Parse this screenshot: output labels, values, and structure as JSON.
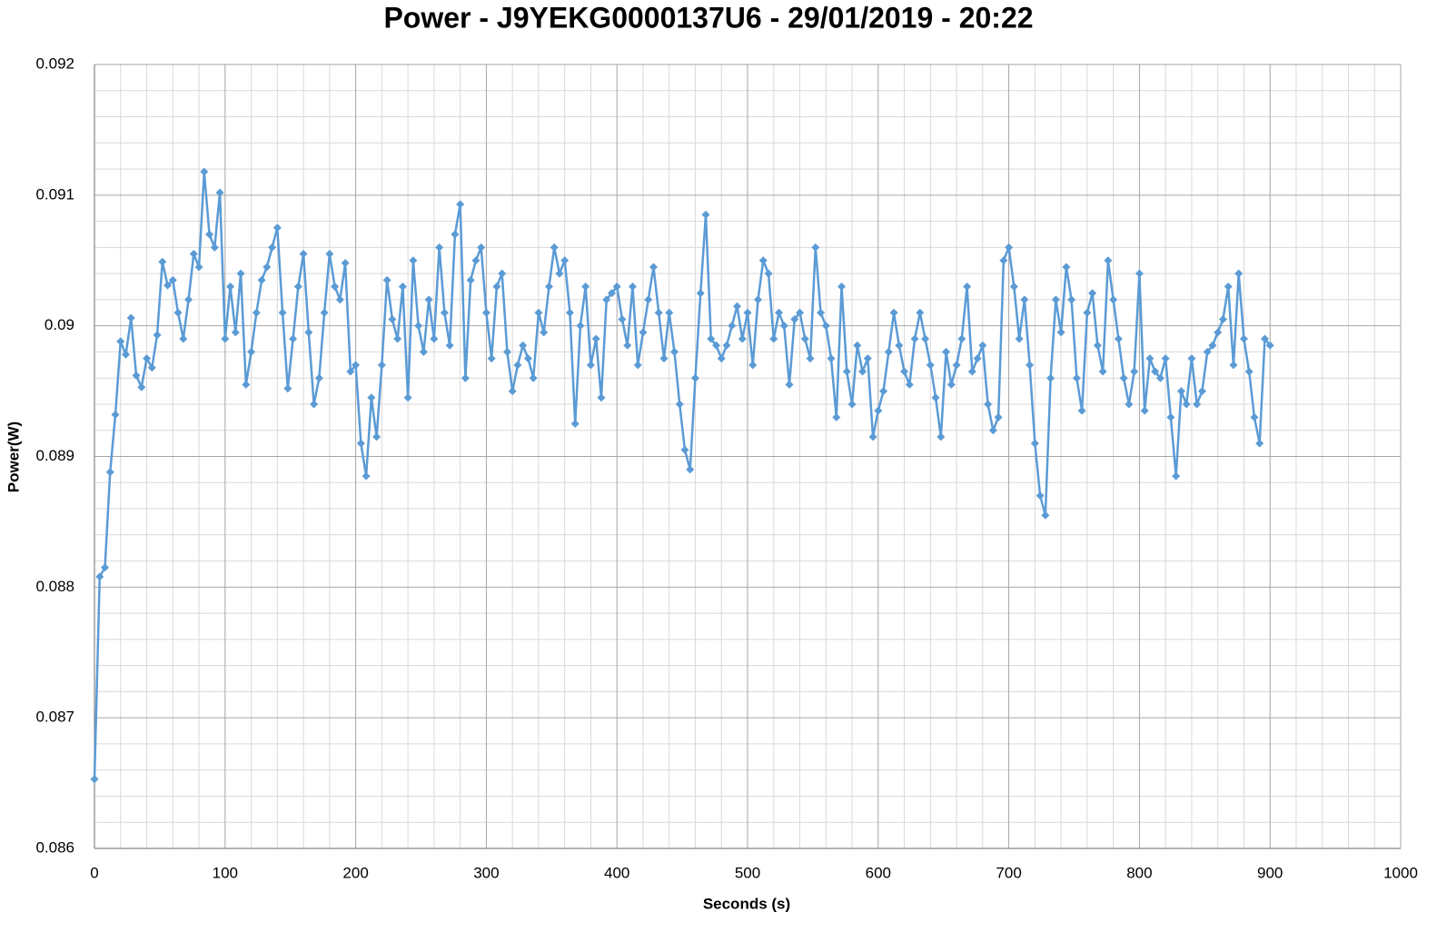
{
  "chart_data": {
    "type": "line",
    "title": "Power - J9YEKG0000137U6 - 29/01/2019 - 20:22",
    "x_label": "Seconds (s)",
    "y_label": "Power(W)",
    "xlim": [
      0,
      1000
    ],
    "xticks": [
      0,
      100,
      200,
      300,
      400,
      500,
      600,
      700,
      800,
      900,
      1000
    ],
    "ylim": [
      0.086,
      0.092
    ],
    "yticks": [
      0.086,
      0.087,
      0.088,
      0.089,
      0.09,
      0.091,
      0.092
    ],
    "grid": true,
    "minor_grid": true,
    "color": "#5b9bd5",
    "marker": "diamond",
    "x": [
      0,
      4,
      8,
      12,
      16,
      20,
      24,
      28,
      32,
      36,
      40,
      44,
      48,
      52,
      56,
      60,
      64,
      68,
      72,
      76,
      80,
      84,
      88,
      92,
      96,
      100,
      104,
      108,
      112,
      116,
      120,
      124,
      128,
      132,
      136,
      140,
      144,
      148,
      152,
      156,
      160,
      164,
      168,
      172,
      176,
      180,
      184,
      188,
      192,
      196,
      200,
      204,
      208,
      212,
      216,
      220,
      224,
      228,
      232,
      236,
      240,
      244,
      248,
      252,
      256,
      260,
      264,
      268,
      272,
      276,
      280,
      284,
      288,
      292,
      296,
      300,
      304,
      308,
      312,
      316,
      320,
      324,
      328,
      332,
      336,
      340,
      344,
      348,
      352,
      356,
      360,
      364,
      368,
      372,
      376,
      380,
      384,
      388,
      392,
      396,
      400,
      404,
      408,
      412,
      416,
      420,
      424,
      428,
      432,
      436,
      440,
      444,
      448,
      452,
      456,
      460,
      464,
      468,
      472,
      476,
      480,
      484,
      488,
      492,
      496,
      500,
      504,
      508,
      512,
      516,
      520,
      524,
      528,
      532,
      536,
      540,
      544,
      548,
      552,
      556,
      560,
      564,
      568,
      572,
      576,
      580,
      584,
      588,
      592,
      596,
      600,
      604,
      608,
      612,
      616,
      620,
      624,
      628,
      632,
      636,
      640,
      644,
      648,
      652,
      656,
      660,
      664,
      668,
      672,
      676,
      680,
      684,
      688,
      692,
      696,
      700,
      704,
      708,
      712,
      716,
      720,
      724,
      728,
      732,
      736,
      740,
      744,
      748,
      752,
      756,
      760,
      764,
      768,
      772,
      776,
      780,
      784,
      788,
      792,
      796,
      800,
      804,
      808,
      812,
      816,
      820,
      824,
      828,
      832,
      836,
      840,
      844,
      848,
      852,
      856,
      860,
      864,
      868,
      872,
      876,
      880,
      884,
      888,
      892,
      896,
      900
    ],
    "values": [
      0.08653,
      0.08808,
      0.08815,
      0.08888,
      0.08932,
      0.08988,
      0.08978,
      0.09006,
      0.08962,
      0.08953,
      0.08975,
      0.08968,
      0.08993,
      0.09049,
      0.09031,
      0.09035,
      0.0901,
      0.0899,
      0.0902,
      0.09055,
      0.09045,
      0.09118,
      0.0907,
      0.0906,
      0.09102,
      0.0899,
      0.0903,
      0.08995,
      0.0904,
      0.08955,
      0.0898,
      0.0901,
      0.09035,
      0.09045,
      0.0906,
      0.09075,
      0.0901,
      0.08952,
      0.0899,
      0.0903,
      0.09055,
      0.08995,
      0.0894,
      0.0896,
      0.0901,
      0.09055,
      0.0903,
      0.0902,
      0.09048,
      0.08965,
      0.0897,
      0.0891,
      0.08885,
      0.08945,
      0.08915,
      0.0897,
      0.09035,
      0.09005,
      0.0899,
      0.0903,
      0.08945,
      0.0905,
      0.09,
      0.0898,
      0.0902,
      0.0899,
      0.0906,
      0.0901,
      0.08985,
      0.0907,
      0.09093,
      0.0896,
      0.09035,
      0.0905,
      0.0906,
      0.0901,
      0.08975,
      0.0903,
      0.0904,
      0.0898,
      0.0895,
      0.0897,
      0.08985,
      0.08975,
      0.0896,
      0.0901,
      0.08995,
      0.0903,
      0.0906,
      0.0904,
      0.0905,
      0.0901,
      0.08925,
      0.09,
      0.0903,
      0.0897,
      0.0899,
      0.08945,
      0.0902,
      0.09025,
      0.0903,
      0.09005,
      0.08985,
      0.0903,
      0.0897,
      0.08995,
      0.0902,
      0.09045,
      0.0901,
      0.08975,
      0.0901,
      0.0898,
      0.0894,
      0.08905,
      0.0889,
      0.0896,
      0.09025,
      0.09085,
      0.0899,
      0.08985,
      0.08975,
      0.08985,
      0.09,
      0.09015,
      0.0899,
      0.0901,
      0.0897,
      0.0902,
      0.0905,
      0.0904,
      0.0899,
      0.0901,
      0.09,
      0.08955,
      0.09005,
      0.0901,
      0.0899,
      0.08975,
      0.0906,
      0.0901,
      0.09,
      0.08975,
      0.0893,
      0.0903,
      0.08965,
      0.0894,
      0.08985,
      0.08965,
      0.08975,
      0.08915,
      0.08935,
      0.0895,
      0.0898,
      0.0901,
      0.08985,
      0.08965,
      0.08955,
      0.0899,
      0.0901,
      0.0899,
      0.0897,
      0.08945,
      0.08915,
      0.0898,
      0.08955,
      0.0897,
      0.0899,
      0.0903,
      0.08965,
      0.08975,
      0.08985,
      0.0894,
      0.0892,
      0.0893,
      0.0905,
      0.0906,
      0.0903,
      0.0899,
      0.0902,
      0.0897,
      0.0891,
      0.0887,
      0.08855,
      0.0896,
      0.0902,
      0.08995,
      0.09045,
      0.0902,
      0.0896,
      0.08935,
      0.0901,
      0.09025,
      0.08985,
      0.08965,
      0.0905,
      0.0902,
      0.0899,
      0.0896,
      0.0894,
      0.08965,
      0.0904,
      0.08935,
      0.08975,
      0.08965,
      0.0896,
      0.08975,
      0.0893,
      0.08885,
      0.0895,
      0.0894,
      0.08975,
      0.0894,
      0.0895,
      0.0898,
      0.08985,
      0.08995,
      0.09005,
      0.0903,
      0.0897,
      0.0904,
      0.0899,
      0.08965,
      0.0893,
      0.0891,
      0.0899,
      0.08985
    ]
  }
}
